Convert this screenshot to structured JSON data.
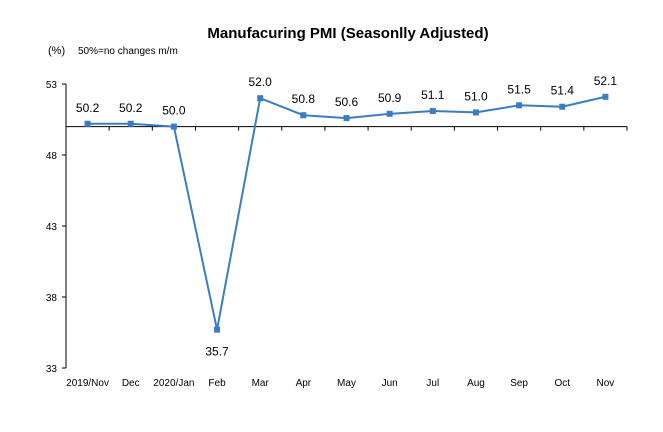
{
  "chart_data": {
    "type": "line",
    "title": "Manufacuring PMI (Seasonlly Adjusted)",
    "y_unit": "(%)",
    "note": "50%=no changes  m/m",
    "categories": [
      "2019/Nov",
      "Dec",
      "2020/Jan",
      "Feb",
      "Mar",
      "Apr",
      "May",
      "Jun",
      "Jul",
      "Aug",
      "Sep",
      "Oct",
      "Nov"
    ],
    "values": [
      50.2,
      50.2,
      50.0,
      35.7,
      52.0,
      50.8,
      50.6,
      50.9,
      51.1,
      51.0,
      51.5,
      51.4,
      52.1
    ],
    "data_labels": [
      "50.2",
      "50.2",
      "50.0",
      "35.7",
      "52.0",
      "50.8",
      "50.6",
      "50.9",
      "51.1",
      "51.0",
      "51.5",
      "51.4",
      "52.1"
    ],
    "yticks": [
      "33",
      "38",
      "43",
      "48",
      "53"
    ],
    "ylim": [
      33,
      53
    ],
    "x_axis_crosses_at": 50,
    "grid": false,
    "legend": "none",
    "line_color": "#3b7dc4",
    "axis_color": "#000000"
  }
}
